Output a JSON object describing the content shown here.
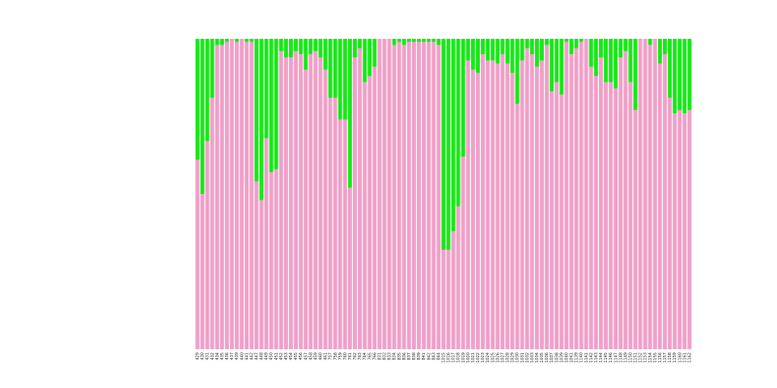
{
  "chart_data": {
    "type": "stacked_bar",
    "categories": [
      "429",
      "430",
      "431",
      "432",
      "434",
      "435",
      "436",
      "437",
      "439",
      "440",
      "441",
      "442",
      "447",
      "448",
      "449",
      "450",
      "451",
      "452",
      "453",
      "454",
      "455",
      "456",
      "457",
      "458",
      "459",
      "460",
      "461",
      "757",
      "758",
      "759",
      "760",
      "761",
      "762",
      "763",
      "764",
      "765",
      "766",
      "831",
      "832",
      "833",
      "834",
      "835",
      "836",
      "837",
      "838",
      "839",
      "841",
      "842",
      "843",
      "844",
      "1015",
      "1016",
      "1017",
      "1018",
      "1019",
      "1020",
      "1021",
      "1022",
      "1023",
      "1024",
      "1025",
      "1026",
      "1027",
      "1028",
      "1029",
      "1030",
      "1031",
      "1032",
      "1033",
      "1034",
      "1035",
      "1036",
      "1037",
      "1038",
      "1039",
      "1040",
      "1041",
      "1139",
      "1140",
      "1141",
      "1142",
      "1143",
      "1144",
      "1145",
      "1146",
      "1147",
      "1148",
      "1149",
      "1150",
      "1151",
      "1152",
      "1153",
      "1154",
      "1155",
      "1156",
      "1157",
      "1158",
      "1159",
      "1160",
      "1161",
      "1162"
    ],
    "series": [
      {
        "color": "#f0a0c8",
        "values": [
          61,
          50,
          67,
          81,
          98,
          98,
          99,
          100,
          99,
          100,
          99,
          99,
          54,
          48,
          68,
          57,
          58,
          96,
          94,
          94,
          96,
          95,
          90,
          95,
          96,
          94,
          90,
          81,
          81,
          74,
          74,
          52,
          94,
          97,
          86,
          88,
          91,
          100,
          100,
          100,
          98,
          99,
          98,
          99,
          99,
          99,
          99,
          99,
          99,
          98,
          32,
          32,
          38,
          46,
          62,
          93,
          90,
          89,
          95,
          93,
          93,
          92,
          95,
          92,
          89,
          79,
          93,
          97,
          95,
          91,
          93,
          98,
          83,
          86,
          82,
          99,
          95,
          97,
          99,
          100,
          91,
          88,
          94,
          86,
          86,
          84,
          94,
          96,
          86,
          77,
          100,
          100,
          98,
          100,
          92,
          95,
          81,
          76,
          77,
          76,
          77
        ]
      },
      {
        "color": "#18e818",
        "values": [
          39,
          50,
          33,
          19,
          2,
          2,
          1,
          0,
          1,
          0,
          1,
          1,
          46,
          52,
          32,
          43,
          42,
          4,
          6,
          6,
          4,
          5,
          10,
          5,
          4,
          6,
          10,
          19,
          19,
          26,
          26,
          48,
          6,
          3,
          14,
          12,
          9,
          0,
          0,
          0,
          2,
          1,
          2,
          1,
          1,
          1,
          1,
          1,
          1,
          2,
          68,
          68,
          62,
          54,
          38,
          7,
          10,
          11,
          5,
          7,
          7,
          8,
          5,
          8,
          11,
          21,
          7,
          3,
          5,
          9,
          7,
          2,
          17,
          14,
          18,
          1,
          5,
          3,
          1,
          0,
          9,
          12,
          6,
          14,
          14,
          16,
          6,
          4,
          14,
          23,
          0,
          0,
          2,
          0,
          8,
          5,
          19,
          24,
          23,
          24,
          23
        ]
      }
    ],
    "ylim": [
      0,
      100
    ]
  }
}
